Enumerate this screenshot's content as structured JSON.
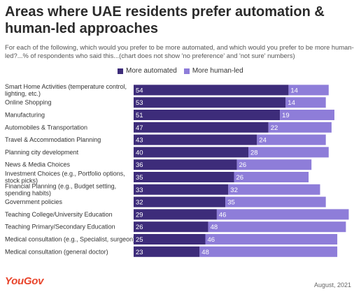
{
  "header": {
    "title": "Areas where UAE residents prefer automation & human-led approaches",
    "subtitle": "For each of the following, which would you prefer to be more automated, and which would you prefer to be more human-led?...% of respondents who said this...(chart does not show 'no preference' and 'not sure' numbers)"
  },
  "legend": {
    "automated_label": "More automated",
    "human_label": "More human-led"
  },
  "colors": {
    "automated": "#3d2c7a",
    "human": "#8e7dd9",
    "logo": "#e8452c"
  },
  "footer": {
    "brand": "YouGov",
    "date": "August, 2021"
  },
  "chart_data": {
    "type": "bar",
    "orientation": "horizontal",
    "stacked": true,
    "categories": [
      [
        "Smart Home Activities (temperature control,",
        "lighting, etc.)"
      ],
      [
        "Online Shopping"
      ],
      [
        "Manufacturing"
      ],
      [
        "Automobiles & Transportation"
      ],
      [
        "Travel & Accommodation Planning"
      ],
      [
        "Planning city development"
      ],
      [
        "News & Media Choices"
      ],
      [
        "Investment Choices (e.g., Portfolio options,",
        "stock picks)"
      ],
      [
        "Financial Planning (e.g., Budget setting,",
        "spending habits)"
      ],
      [
        "Government policies"
      ],
      [
        "Teaching College/University Education"
      ],
      [
        "Teaching Primary/Secondary Education"
      ],
      [
        "Medical consultation (e.g., Specialist, surgeon)"
      ],
      [
        "Medical consultation (general doctor)"
      ]
    ],
    "series": [
      {
        "name": "More automated",
        "values": [
          54,
          53,
          51,
          47,
          43,
          40,
          36,
          35,
          33,
          32,
          29,
          26,
          25,
          23
        ]
      },
      {
        "name": "More human-led",
        "values": [
          14,
          14,
          19,
          22,
          24,
          28,
          26,
          26,
          32,
          35,
          46,
          48,
          46,
          48
        ]
      }
    ],
    "xlim": [
      0,
      75
    ],
    "grid": false,
    "legend_position": "top"
  }
}
